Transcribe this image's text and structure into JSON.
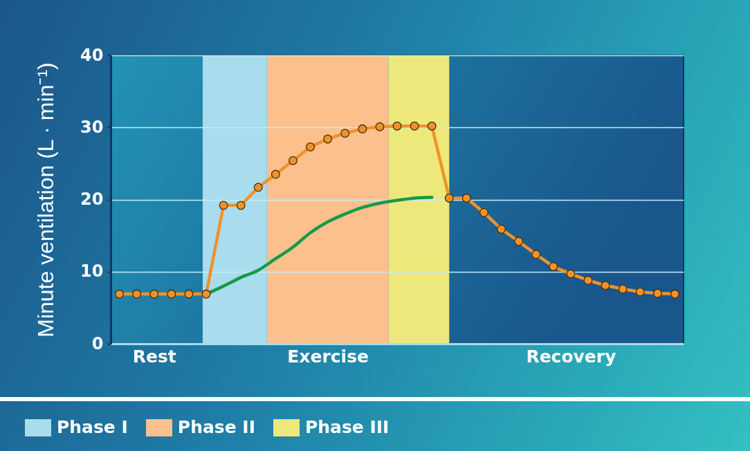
{
  "chart_data": {
    "type": "line",
    "ylabel": "Minute ventilation (L · min⁻¹)",
    "categories": [
      null,
      null,
      "Rest",
      null,
      null,
      null,
      null,
      null,
      null,
      null,
      null,
      null,
      "Exercise",
      null,
      null,
      null,
      null,
      null,
      null,
      null,
      null,
      null,
      null,
      null,
      null,
      null,
      "Recovery",
      null,
      null,
      null,
      null,
      null,
      null
    ],
    "ylim": [
      0,
      40
    ],
    "yticks": [
      0,
      10,
      20,
      30,
      40
    ],
    "grid": "y",
    "marker": "circle",
    "annotations": [
      "Phase I",
      "Phase II",
      "Phase III"
    ],
    "series": [
      {
        "color": "#f0922b",
        "values": [
          6.9,
          6.9,
          6.9,
          6.9,
          6.9,
          6.9,
          19.2,
          19.2,
          21.7,
          23.5,
          25.4,
          27.3,
          28.4,
          29.2,
          29.8,
          30.1,
          30.2,
          30.2,
          30.2,
          20.2,
          20.2,
          18.2,
          15.9,
          14.2,
          12.4,
          10.7,
          9.7,
          8.8,
          8.1,
          7.6,
          7.2,
          7.0,
          6.9
        ]
      },
      {
        "color": "#169a48",
        "marker": "none",
        "values": [
          null,
          null,
          null,
          null,
          null,
          6.9,
          8.0,
          9.2,
          10.2,
          11.8,
          13.4,
          15.4,
          16.9,
          18.0,
          18.9,
          19.5,
          19.9,
          20.2,
          20.3,
          null,
          null,
          null,
          null,
          null,
          null,
          null,
          null,
          null,
          null,
          null,
          null,
          null,
          null
        ]
      }
    ]
  }
}
